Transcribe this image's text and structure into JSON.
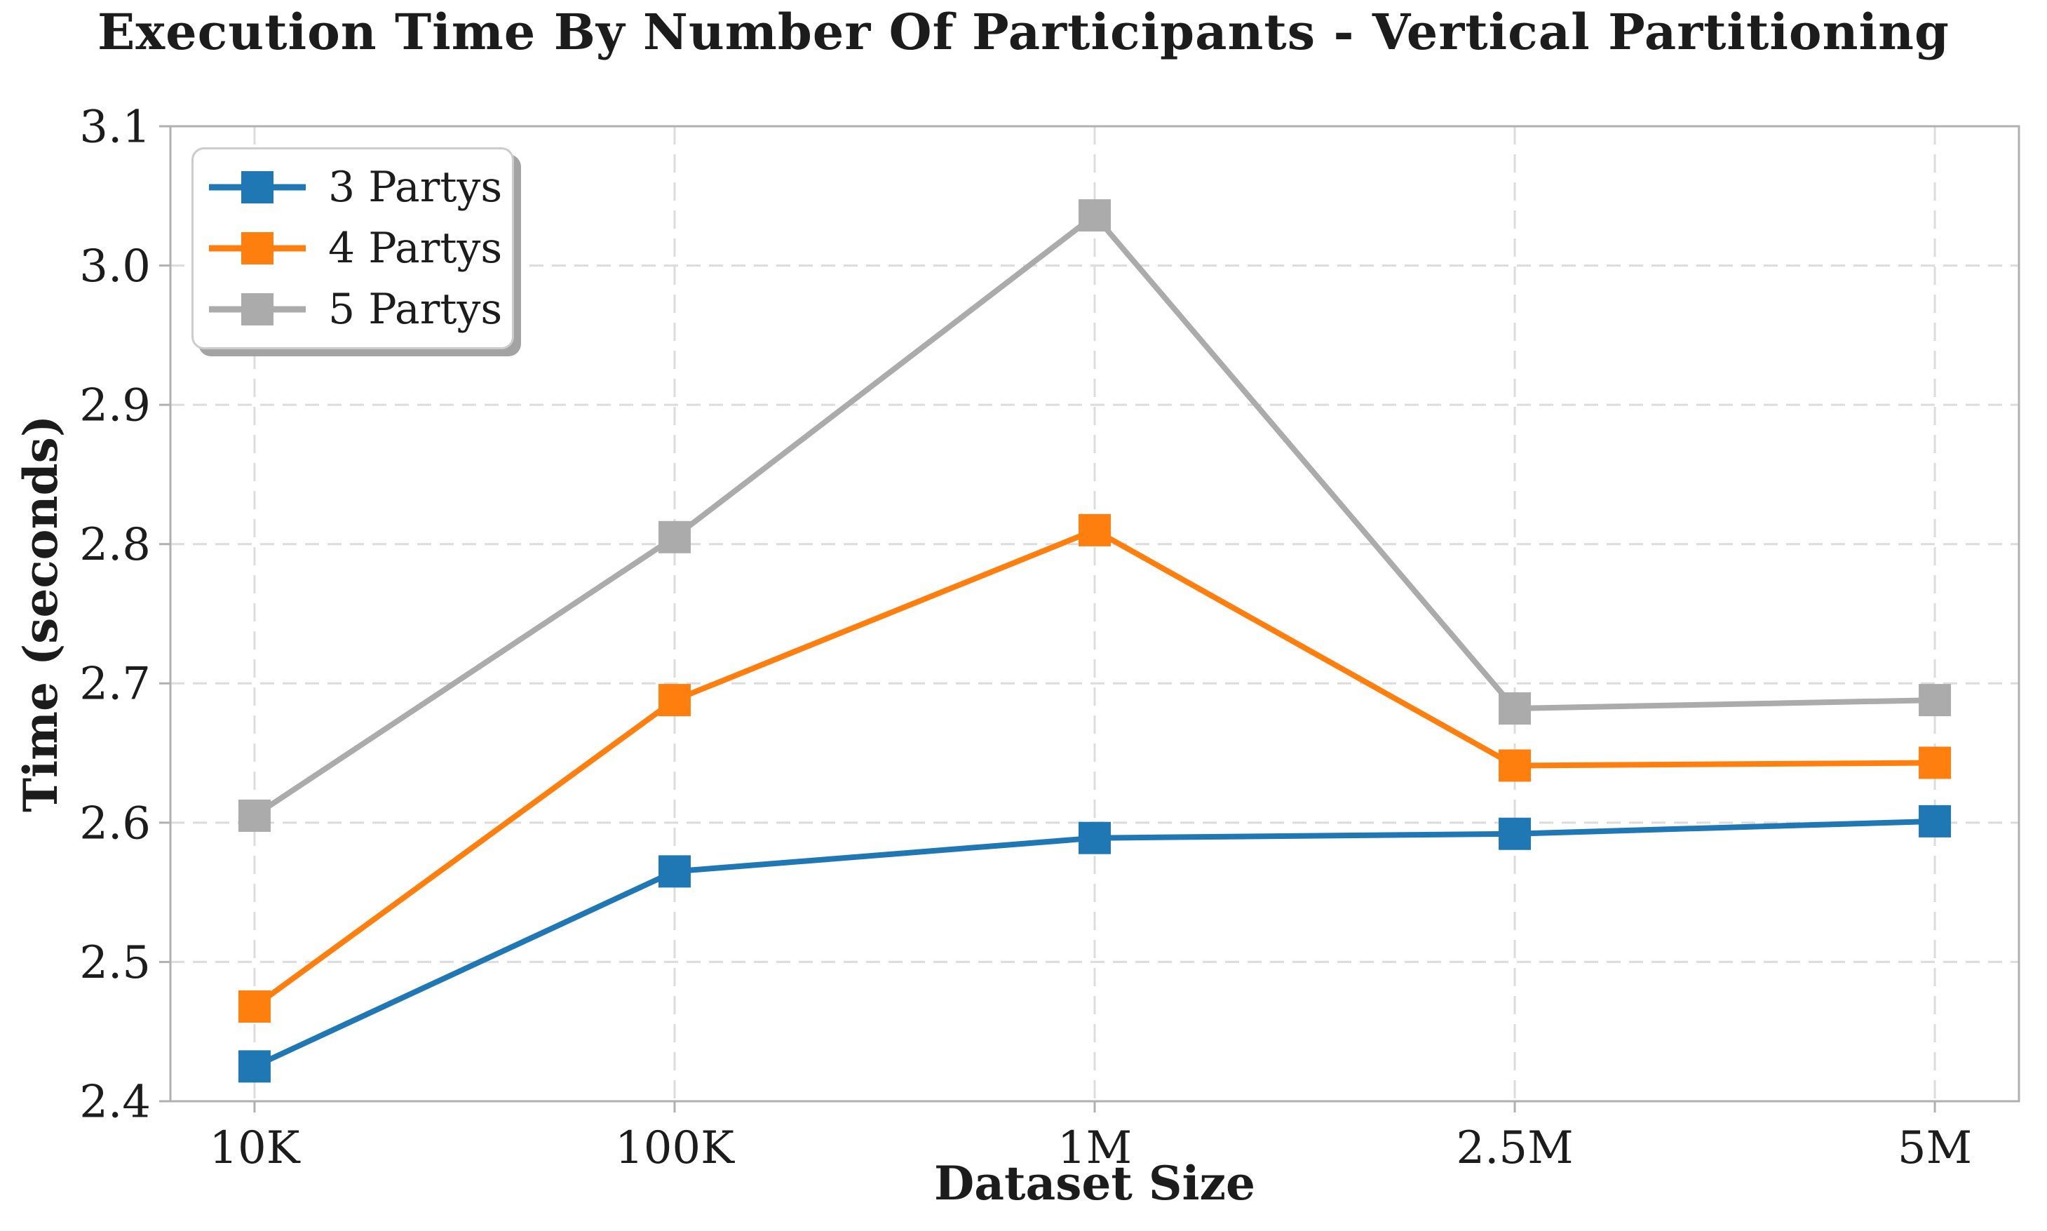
{
  "title": "Execution Time By Number Of Participants - Vertical Partitioning",
  "chart_data": {
    "type": "line",
    "categories": [
      "10K",
      "100K",
      "1M",
      "2.5M",
      "5M"
    ],
    "series": [
      {
        "name": "3 Partys",
        "color": "#1f77b4",
        "values": [
          2.425,
          2.565,
          2.589,
          2.592,
          2.601
        ]
      },
      {
        "name": "4 Partys",
        "color": "#ff7f0e",
        "values": [
          2.468,
          2.688,
          2.81,
          2.641,
          2.643
        ]
      },
      {
        "name": "5 Partys",
        "color": "#ababab",
        "values": [
          2.605,
          2.805,
          3.036,
          2.682,
          2.688
        ]
      }
    ],
    "xlabel": "Dataset Size",
    "ylabel": "Time (seconds)",
    "ylim": [
      2.4,
      3.1
    ],
    "ytick_labels": [
      "2.4",
      "2.5",
      "2.6",
      "2.7",
      "2.8",
      "2.9",
      "3.0",
      "3.1"
    ],
    "grid": true,
    "legend_position": "upper left",
    "marker": "square"
  },
  "colors": {
    "background": "#ffffff",
    "grid": "#dcdcdc",
    "spine": "#b0b0b0",
    "text": "#1c1c1c",
    "legend_border": "#cccccc",
    "legend_shadow": "#a3a3a3"
  }
}
